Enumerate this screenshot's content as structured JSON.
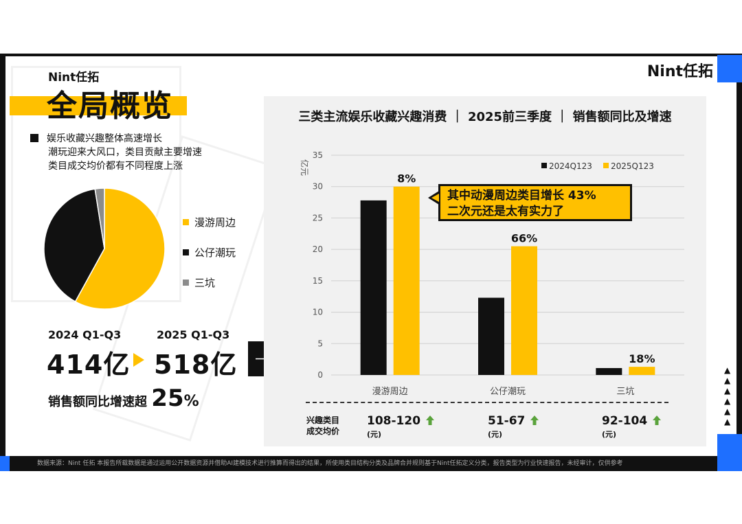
{
  "brand": {
    "logo_left": "Nint任拓",
    "logo_right": "Nint任拓"
  },
  "page_title": "全局概览",
  "bullets": [
    "娱乐收藏兴趣整体高速增长",
    "潮玩迎来大风口，类目贡献主要增速",
    "类目成交均价都有不同程度上涨"
  ],
  "pie": {
    "legend": [
      "漫游周边",
      "公仔潮玩",
      "三坑"
    ],
    "values": [
      58,
      39.5,
      2.5
    ],
    "colors": [
      "#ffc000",
      "#111111",
      "#8c8c8c"
    ]
  },
  "summary": {
    "period_a": "2024 Q1-Q3",
    "value_a": "414亿",
    "period_b": "2025 Q1-Q3",
    "value_b": "518亿",
    "growth_prefix": "销售额同比增速超",
    "growth_value": "25",
    "growth_sign": "%"
  },
  "chart_data": {
    "type": "bar",
    "title": "三类主流娱乐收藏兴趣消费 ｜ 2025前三季度 ｜ 销售额同比及增速",
    "ylabel": "亿元",
    "categories": [
      "漫游周边",
      "公仔潮玩",
      "三坑"
    ],
    "series": [
      {
        "name": "2024Q123",
        "values": [
          27.8,
          12.3,
          1.1
        ]
      },
      {
        "name": "2025Q123",
        "values": [
          30.0,
          20.5,
          1.3
        ]
      }
    ],
    "growth_labels": [
      "8%",
      "66%",
      "18%"
    ],
    "ylim": [
      0,
      35
    ],
    "yticks": [
      0,
      5,
      10,
      15,
      20,
      25,
      30,
      35
    ],
    "legend_position": "top-right",
    "colors": [
      "#111111",
      "#ffc000"
    ]
  },
  "callout": {
    "line1": "其中动漫周边类目增长 43%",
    "line2": "二次元还是太有实力了"
  },
  "price_row": {
    "header_line1": "兴趣类目",
    "header_line2": "成交均价",
    "values": [
      "108-120",
      "51-67",
      "92-104"
    ],
    "unit": "(元)",
    "up_color": "#5aa33c"
  },
  "triangles": [
    "▲",
    "▲",
    "▲",
    "▲",
    "▲",
    "▲"
  ],
  "footer": "数据来源：Nint 任拓     本报告所载数据是通过运用公开数据资源并借助AI建模技术进行推算而得出的结果，所使用类目结构分类及品牌合并规则基于Nint任拓定义分类，报告类型为行业快速报告，未经审计，仅供参考"
}
